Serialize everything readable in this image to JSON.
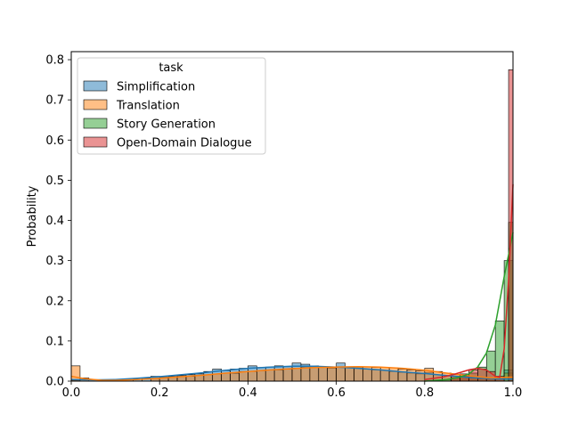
{
  "chart_data": {
    "type": "histogram",
    "xlabel": "",
    "ylabel": "Probability",
    "xlim": [
      0.0,
      1.0
    ],
    "ylim": [
      0.0,
      0.82
    ],
    "x_ticks": [
      {
        "v": 0.0,
        "label": "0.0"
      },
      {
        "v": 0.2,
        "label": "0.2"
      },
      {
        "v": 0.4,
        "label": "0.4"
      },
      {
        "v": 0.6,
        "label": "0.6"
      },
      {
        "v": 0.8,
        "label": "0.8"
      },
      {
        "v": 1.0,
        "label": "1.0"
      }
    ],
    "y_ticks": [
      {
        "v": 0.0,
        "label": "0.0"
      },
      {
        "v": 0.1,
        "label": "0.1"
      },
      {
        "v": 0.2,
        "label": "0.2"
      },
      {
        "v": 0.3,
        "label": "0.3"
      },
      {
        "v": 0.4,
        "label": "0.4"
      },
      {
        "v": 0.5,
        "label": "0.5"
      },
      {
        "v": 0.6,
        "label": "0.6"
      },
      {
        "v": 0.7,
        "label": "0.7"
      },
      {
        "v": 0.8,
        "label": "0.8"
      }
    ],
    "grid": false,
    "legend": {
      "title": "task",
      "position": "top-left"
    },
    "bin_width": 0.02,
    "series": [
      {
        "name": "Simplification",
        "color": "#1f77b4",
        "bins": [
          [
            0.0,
            0.002
          ],
          [
            0.1,
            0.003
          ],
          [
            0.12,
            0.004
          ],
          [
            0.14,
            0.005
          ],
          [
            0.16,
            0.007
          ],
          [
            0.18,
            0.012
          ],
          [
            0.2,
            0.01
          ],
          [
            0.22,
            0.012
          ],
          [
            0.24,
            0.014
          ],
          [
            0.26,
            0.016
          ],
          [
            0.28,
            0.018
          ],
          [
            0.3,
            0.024
          ],
          [
            0.32,
            0.03
          ],
          [
            0.34,
            0.026
          ],
          [
            0.36,
            0.03
          ],
          [
            0.38,
            0.032
          ],
          [
            0.4,
            0.038
          ],
          [
            0.42,
            0.034
          ],
          [
            0.44,
            0.035
          ],
          [
            0.46,
            0.038
          ],
          [
            0.48,
            0.036
          ],
          [
            0.5,
            0.045
          ],
          [
            0.52,
            0.042
          ],
          [
            0.54,
            0.038
          ],
          [
            0.56,
            0.035
          ],
          [
            0.58,
            0.032
          ],
          [
            0.6,
            0.045
          ],
          [
            0.62,
            0.036
          ],
          [
            0.64,
            0.033
          ],
          [
            0.66,
            0.03
          ],
          [
            0.68,
            0.028
          ],
          [
            0.7,
            0.027
          ],
          [
            0.72,
            0.024
          ],
          [
            0.74,
            0.022
          ],
          [
            0.76,
            0.02
          ],
          [
            0.78,
            0.018
          ],
          [
            0.8,
            0.022
          ],
          [
            0.82,
            0.016
          ],
          [
            0.84,
            0.014
          ],
          [
            0.86,
            0.012
          ],
          [
            0.88,
            0.01
          ],
          [
            0.9,
            0.008
          ],
          [
            0.92,
            0.006
          ],
          [
            0.94,
            0.005
          ],
          [
            0.96,
            0.006
          ],
          [
            0.98,
            0.028
          ]
        ],
        "kde": [
          [
            0.0,
            0.004
          ],
          [
            0.05,
            0.003
          ],
          [
            0.1,
            0.004
          ],
          [
            0.15,
            0.007
          ],
          [
            0.2,
            0.011
          ],
          [
            0.25,
            0.016
          ],
          [
            0.3,
            0.021
          ],
          [
            0.35,
            0.027
          ],
          [
            0.4,
            0.032
          ],
          [
            0.45,
            0.035
          ],
          [
            0.5,
            0.037
          ],
          [
            0.55,
            0.037
          ],
          [
            0.6,
            0.035
          ],
          [
            0.65,
            0.032
          ],
          [
            0.7,
            0.028
          ],
          [
            0.75,
            0.023
          ],
          [
            0.8,
            0.019
          ],
          [
            0.85,
            0.014
          ],
          [
            0.9,
            0.009
          ],
          [
            0.95,
            0.006
          ],
          [
            1.0,
            0.005
          ]
        ]
      },
      {
        "name": "Translation",
        "color": "#ff7f0e",
        "bins": [
          [
            0.0,
            0.038
          ],
          [
            0.02,
            0.008
          ],
          [
            0.18,
            0.006
          ],
          [
            0.2,
            0.008
          ],
          [
            0.22,
            0.01
          ],
          [
            0.24,
            0.012
          ],
          [
            0.26,
            0.012
          ],
          [
            0.28,
            0.014
          ],
          [
            0.3,
            0.016
          ],
          [
            0.32,
            0.018
          ],
          [
            0.34,
            0.02
          ],
          [
            0.36,
            0.02
          ],
          [
            0.38,
            0.024
          ],
          [
            0.4,
            0.024
          ],
          [
            0.42,
            0.026
          ],
          [
            0.44,
            0.028
          ],
          [
            0.46,
            0.028
          ],
          [
            0.48,
            0.03
          ],
          [
            0.5,
            0.032
          ],
          [
            0.52,
            0.034
          ],
          [
            0.54,
            0.034
          ],
          [
            0.56,
            0.035
          ],
          [
            0.58,
            0.035
          ],
          [
            0.6,
            0.036
          ],
          [
            0.62,
            0.035
          ],
          [
            0.64,
            0.036
          ],
          [
            0.66,
            0.035
          ],
          [
            0.68,
            0.034
          ],
          [
            0.7,
            0.034
          ],
          [
            0.72,
            0.033
          ],
          [
            0.74,
            0.03
          ],
          [
            0.76,
            0.028
          ],
          [
            0.78,
            0.026
          ],
          [
            0.8,
            0.032
          ],
          [
            0.82,
            0.024
          ],
          [
            0.84,
            0.02
          ],
          [
            0.86,
            0.016
          ],
          [
            0.88,
            0.012
          ],
          [
            0.9,
            0.01
          ],
          [
            0.92,
            0.008
          ],
          [
            0.94,
            0.006
          ],
          [
            0.96,
            0.008
          ],
          [
            0.98,
            0.02
          ]
        ],
        "kde": [
          [
            0.0,
            0.012
          ],
          [
            0.03,
            0.006
          ],
          [
            0.07,
            0.002
          ],
          [
            0.1,
            0.002
          ],
          [
            0.15,
            0.004
          ],
          [
            0.2,
            0.007
          ],
          [
            0.25,
            0.011
          ],
          [
            0.3,
            0.015
          ],
          [
            0.35,
            0.02
          ],
          [
            0.4,
            0.024
          ],
          [
            0.45,
            0.028
          ],
          [
            0.5,
            0.031
          ],
          [
            0.55,
            0.034
          ],
          [
            0.6,
            0.035
          ],
          [
            0.65,
            0.036
          ],
          [
            0.7,
            0.035
          ],
          [
            0.75,
            0.032
          ],
          [
            0.8,
            0.027
          ],
          [
            0.85,
            0.02
          ],
          [
            0.9,
            0.013
          ],
          [
            0.95,
            0.008
          ],
          [
            1.0,
            0.01
          ]
        ]
      },
      {
        "name": "Story Generation",
        "color": "#2ca02c",
        "bins": [
          [
            0.84,
            0.004
          ],
          [
            0.86,
            0.008
          ],
          [
            0.88,
            0.012
          ],
          [
            0.9,
            0.02
          ],
          [
            0.92,
            0.035
          ],
          [
            0.94,
            0.075
          ],
          [
            0.96,
            0.15
          ],
          [
            0.98,
            0.3
          ],
          [
            0.99,
            0.395
          ]
        ],
        "kde": [
          [
            0.8,
            0.0
          ],
          [
            0.85,
            0.004
          ],
          [
            0.88,
            0.01
          ],
          [
            0.9,
            0.018
          ],
          [
            0.92,
            0.035
          ],
          [
            0.94,
            0.07
          ],
          [
            0.96,
            0.14
          ],
          [
            0.98,
            0.26
          ],
          [
            1.0,
            0.37
          ]
        ]
      },
      {
        "name": "Open-Domain Dialogue",
        "color": "#d62728",
        "bins": [
          [
            0.86,
            0.012
          ],
          [
            0.88,
            0.018
          ],
          [
            0.9,
            0.028
          ],
          [
            0.92,
            0.03
          ],
          [
            0.94,
            0.024
          ],
          [
            0.96,
            0.012
          ],
          [
            0.99,
            0.775
          ]
        ],
        "kde": [
          [
            0.8,
            0.004
          ],
          [
            0.84,
            0.01
          ],
          [
            0.87,
            0.018
          ],
          [
            0.9,
            0.028
          ],
          [
            0.92,
            0.032
          ],
          [
            0.94,
            0.028
          ],
          [
            0.96,
            0.012
          ],
          [
            0.97,
            0.01
          ],
          [
            0.98,
            0.08
          ],
          [
            0.99,
            0.25
          ],
          [
            1.0,
            0.49
          ]
        ]
      }
    ]
  }
}
